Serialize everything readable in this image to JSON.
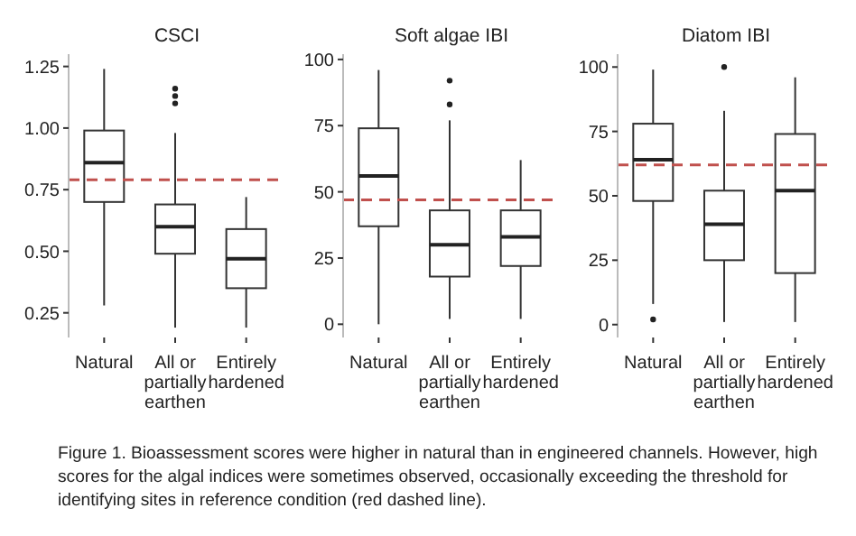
{
  "chart_data": [
    {
      "type": "box",
      "title": "CSCI",
      "categories": [
        "Natural",
        "All or partially earthen",
        "Entirely hardened"
      ],
      "boxes": [
        {
          "low": 0.28,
          "q1": 0.7,
          "median": 0.86,
          "q3": 0.99,
          "high": 1.24
        },
        {
          "low": 0.19,
          "q1": 0.49,
          "median": 0.6,
          "q3": 0.69,
          "high": 0.98,
          "outliers": [
            1.1,
            1.13,
            1.16
          ]
        },
        {
          "low": 0.19,
          "q1": 0.35,
          "median": 0.47,
          "q3": 0.59,
          "high": 0.72
        }
      ],
      "ylim": [
        0.15,
        1.3
      ],
      "yticks": [
        {
          "value": 0.25,
          "label": "0.25"
        },
        {
          "value": 0.5,
          "label": "0.50"
        },
        {
          "value": 0.75,
          "label": "0.75"
        },
        {
          "value": 1,
          "label": "1.00"
        },
        {
          "value": 1.25,
          "label": "1.25"
        }
      ],
      "ref_lines": [
        {
          "axis": "y",
          "value": 0.79,
          "color": "#c0504d",
          "line_style": "dashed"
        }
      ],
      "annotations": [
        "Figure 1. Bioassessment scores were higher in natural than in engineered channels.  However, high scores for the algal indices were sometimes observed, occasionally  exceeding the threshold for identifying sites in reference condition (red dashed line)."
      ]
    },
    {
      "type": "box",
      "title": "Soft algae IBI",
      "categories": [
        "Natural",
        "All or partially earthen",
        "Entirely hardened"
      ],
      "boxes": [
        {
          "low": 0,
          "q1": 37,
          "median": 56,
          "q3": 74,
          "high": 96
        },
        {
          "low": 2,
          "q1": 18,
          "median": 30,
          "q3": 43,
          "high": 77,
          "outliers": [
            83,
            92
          ]
        },
        {
          "low": 2,
          "q1": 22,
          "median": 33,
          "q3": 43,
          "high": 62
        }
      ],
      "ylim": [
        -5,
        102
      ],
      "yticks": [
        0,
        25,
        50,
        75,
        100
      ],
      "ref_lines": [
        {
          "axis": "y",
          "value": 47,
          "color": "#c0504d",
          "line_style": "dashed"
        }
      ]
    },
    {
      "type": "box",
      "title": "Diatom IBI",
      "categories": [
        "Natural",
        "All or partially earthen",
        "Entirely hardened"
      ],
      "boxes": [
        {
          "low": 8,
          "q1": 48,
          "median": 64,
          "q3": 78,
          "high": 99,
          "outliers": [
            2
          ]
        },
        {
          "low": 1,
          "q1": 25,
          "median": 39,
          "q3": 52,
          "high": 83,
          "outliers": [
            100
          ]
        },
        {
          "low": 1,
          "q1": 20,
          "median": 52,
          "q3": 74,
          "high": 96
        }
      ],
      "ylim": [
        -5,
        105
      ],
      "yticks": [
        0,
        25,
        50,
        75,
        100
      ],
      "ref_lines": [
        {
          "axis": "y",
          "value": 62,
          "color": "#c0504d",
          "line_style": "dashed"
        }
      ]
    }
  ]
}
